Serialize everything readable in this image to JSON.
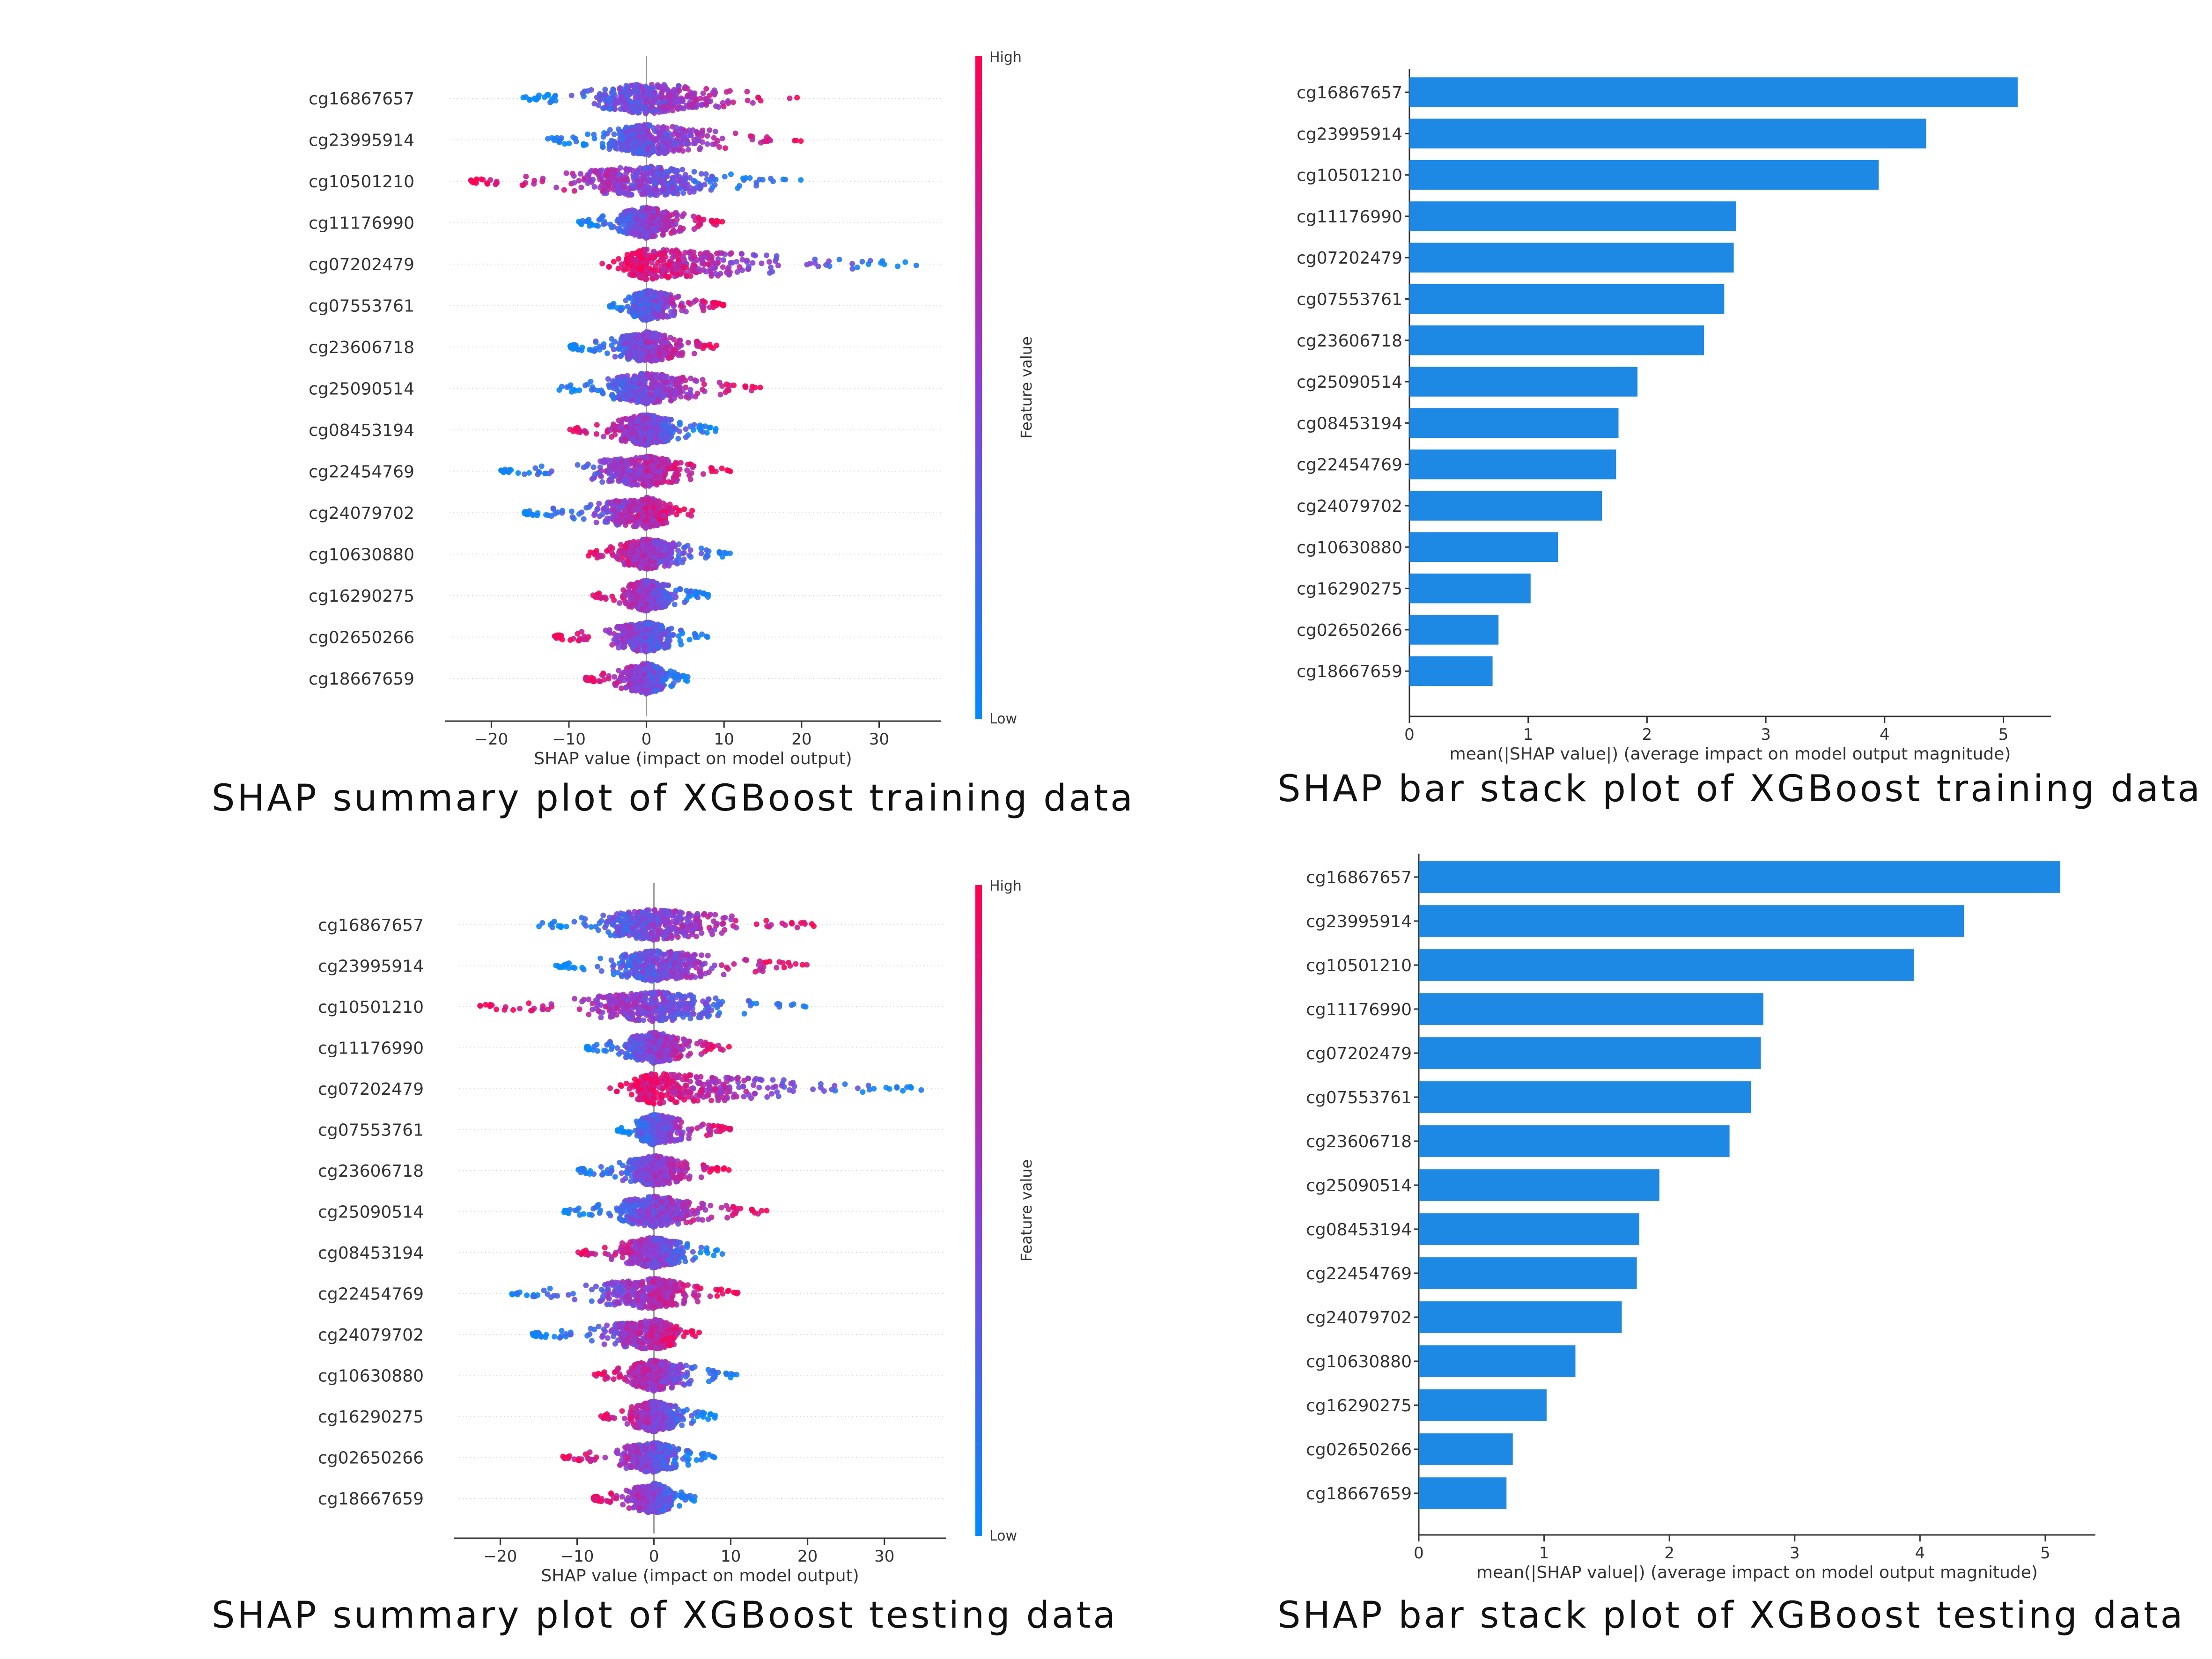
{
  "features": [
    "cg16867657",
    "cg23995914",
    "cg10501210",
    "cg11176990",
    "cg07202479",
    "cg07553761",
    "cg23606718",
    "cg25090514",
    "cg08453194",
    "cg22454769",
    "cg24079702",
    "cg10630880",
    "cg16290275",
    "cg02650266",
    "cg18667659"
  ],
  "captions": {
    "summary_train": "SHAP summary plot of XGBoost training data",
    "bar_train": "SHAP bar stack plot of XGBoost training data",
    "summary_test": "SHAP summary plot of XGBoost testing data",
    "bar_test": "SHAP bar stack plot of XGBoost testing data"
  },
  "colors": {
    "bar": "#1e88e5",
    "low": "#008bfb",
    "high": "#ff0051",
    "axis": "#333333"
  },
  "chart_data": [
    {
      "type": "scatter",
      "variant": "shap-beeswarm",
      "xlabel": "SHAP value (impact on model output)",
      "xticks": [
        -20,
        -10,
        0,
        10,
        20,
        30
      ],
      "xlim": [
        -26,
        38
      ],
      "colorbar": {
        "label": "Feature value",
        "high": "High",
        "low": "Low"
      },
      "ranges": [
        [
          -16,
          21
        ],
        [
          -13,
          20
        ],
        [
          -23,
          20
        ],
        [
          -9,
          10
        ],
        [
          -6,
          35
        ],
        [
          -5,
          10
        ],
        [
          -10,
          10
        ],
        [
          -12,
          15
        ],
        [
          -10,
          9
        ],
        [
          -19,
          11
        ],
        [
          -16,
          7
        ],
        [
          -8,
          11
        ],
        [
          -7,
          8
        ],
        [
          -12,
          8
        ],
        [
          -8,
          6
        ]
      ],
      "low_side": [
        "left",
        "left",
        "right",
        "left",
        "right",
        "left",
        "left",
        "left",
        "right",
        "left",
        "left",
        "right",
        "right",
        "right",
        "right"
      ]
    },
    {
      "type": "bar",
      "variant": "shap-bar",
      "xlabel": "mean(|SHAP value|) (average impact on model output magnitude)",
      "xticks": [
        0,
        1,
        2,
        3,
        4,
        5
      ],
      "xlim": [
        0,
        5.4
      ],
      "values": [
        5.12,
        4.35,
        3.95,
        2.75,
        2.73,
        2.65,
        2.48,
        1.92,
        1.76,
        1.74,
        1.62,
        1.25,
        1.02,
        0.75,
        0.7
      ]
    },
    {
      "type": "scatter",
      "variant": "shap-beeswarm",
      "xlabel": "SHAP value (impact on model output)",
      "xticks": [
        -20,
        -10,
        0,
        10,
        20,
        30
      ],
      "xlim": [
        -26,
        38
      ],
      "colorbar": {
        "label": "Feature value",
        "high": "High",
        "low": "Low"
      },
      "ranges": [
        [
          -16,
          21
        ],
        [
          -13,
          20
        ],
        [
          -23,
          20
        ],
        [
          -9,
          10
        ],
        [
          -6,
          35
        ],
        [
          -5,
          10
        ],
        [
          -10,
          10
        ],
        [
          -12,
          15
        ],
        [
          -10,
          9
        ],
        [
          -19,
          11
        ],
        [
          -16,
          7
        ],
        [
          -8,
          11
        ],
        [
          -7,
          8
        ],
        [
          -12,
          8
        ],
        [
          -8,
          6
        ]
      ],
      "low_side": [
        "left",
        "left",
        "right",
        "left",
        "right",
        "left",
        "left",
        "left",
        "right",
        "left",
        "left",
        "right",
        "right",
        "right",
        "right"
      ]
    },
    {
      "type": "bar",
      "variant": "shap-bar",
      "xlabel": "mean(|SHAP value|) (average impact on model output magnitude)",
      "xticks": [
        0,
        1,
        2,
        3,
        4,
        5
      ],
      "xlim": [
        0,
        5.4
      ],
      "values": [
        5.12,
        4.35,
        3.95,
        2.75,
        2.73,
        2.65,
        2.48,
        1.92,
        1.76,
        1.74,
        1.62,
        1.25,
        1.02,
        0.75,
        0.7
      ]
    }
  ]
}
